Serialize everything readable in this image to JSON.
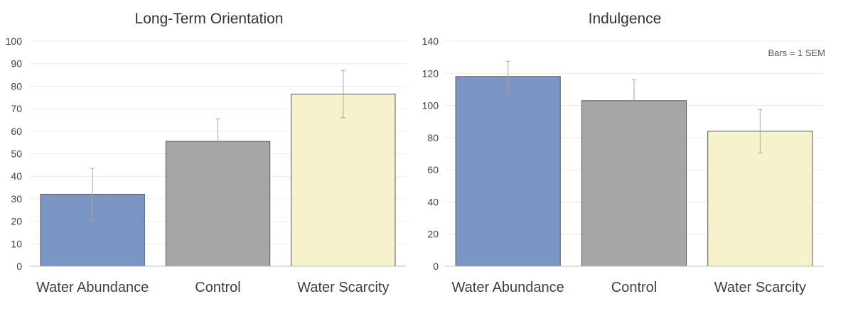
{
  "chart_data": [
    {
      "type": "bar",
      "title": "Long-Term Orientation",
      "categories": [
        "Water Abundance",
        "Control",
        "Water Scarcity"
      ],
      "values": [
        32,
        55.5,
        76.5
      ],
      "error": [
        11.5,
        10,
        10.5
      ],
      "ylim": [
        0,
        100
      ],
      "yticks": [
        0,
        10,
        20,
        30,
        40,
        50,
        60,
        70,
        80,
        90,
        100
      ],
      "grid": true,
      "note": ""
    },
    {
      "type": "bar",
      "title": "Indulgence",
      "categories": [
        "Water Abundance",
        "Control",
        "Water Scarcity"
      ],
      "values": [
        118,
        103,
        84
      ],
      "error": [
        9.5,
        13,
        13.5
      ],
      "ylim": [
        0,
        140
      ],
      "yticks": [
        0,
        20,
        40,
        60,
        80,
        100,
        120,
        140
      ],
      "grid": true,
      "note": "Bars = 1 SEM"
    }
  ],
  "colors": {
    "bars": [
      "#7b96c4",
      "#a6a6a6",
      "#f6f2cd"
    ],
    "error_bars": "#a6a6a6",
    "gridlines": "#ececec"
  }
}
